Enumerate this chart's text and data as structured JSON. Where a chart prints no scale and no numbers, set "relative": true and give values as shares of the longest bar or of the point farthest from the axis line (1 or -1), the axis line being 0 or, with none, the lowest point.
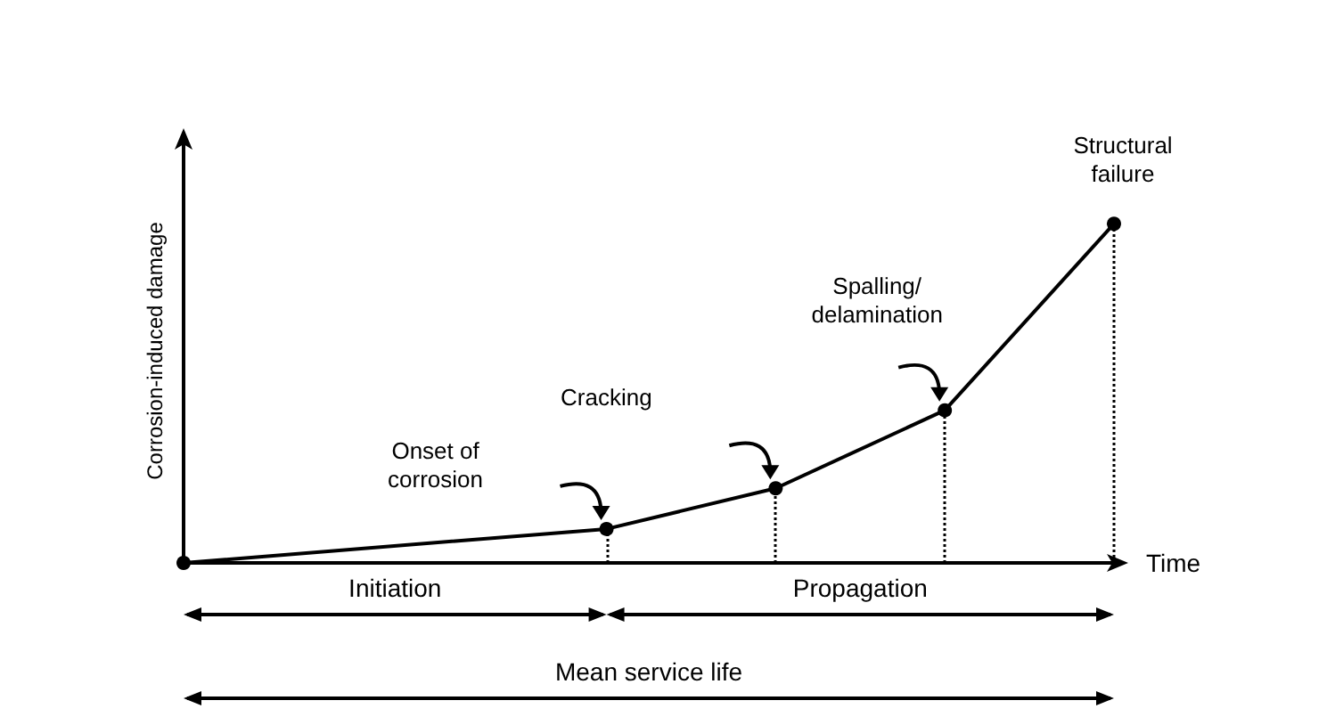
{
  "chart_data": {
    "type": "line",
    "relative": true,
    "ylabel": "Corrosion-induced damage",
    "xlabel": "Time",
    "categories": [
      null,
      null,
      null,
      null,
      null,
      null,
      null,
      null,
      null,
      null,
      null,
      null
    ],
    "marker": "circle",
    "line_style": "solid",
    "series": [
      {
        "color": "#000000",
        "values": [
          0,
          null,
          null,
          null,
          null,
          0.1,
          null,
          0.22,
          null,
          0.45,
          null,
          1
        ]
      }
    ],
    "annotations": [
      "Onset of\ncorrosion",
      "Cracking",
      "Spalling/\ndelamination",
      "Structural\nfailure",
      "Initiation",
      "Propagation",
      "Mean service life"
    ]
  }
}
